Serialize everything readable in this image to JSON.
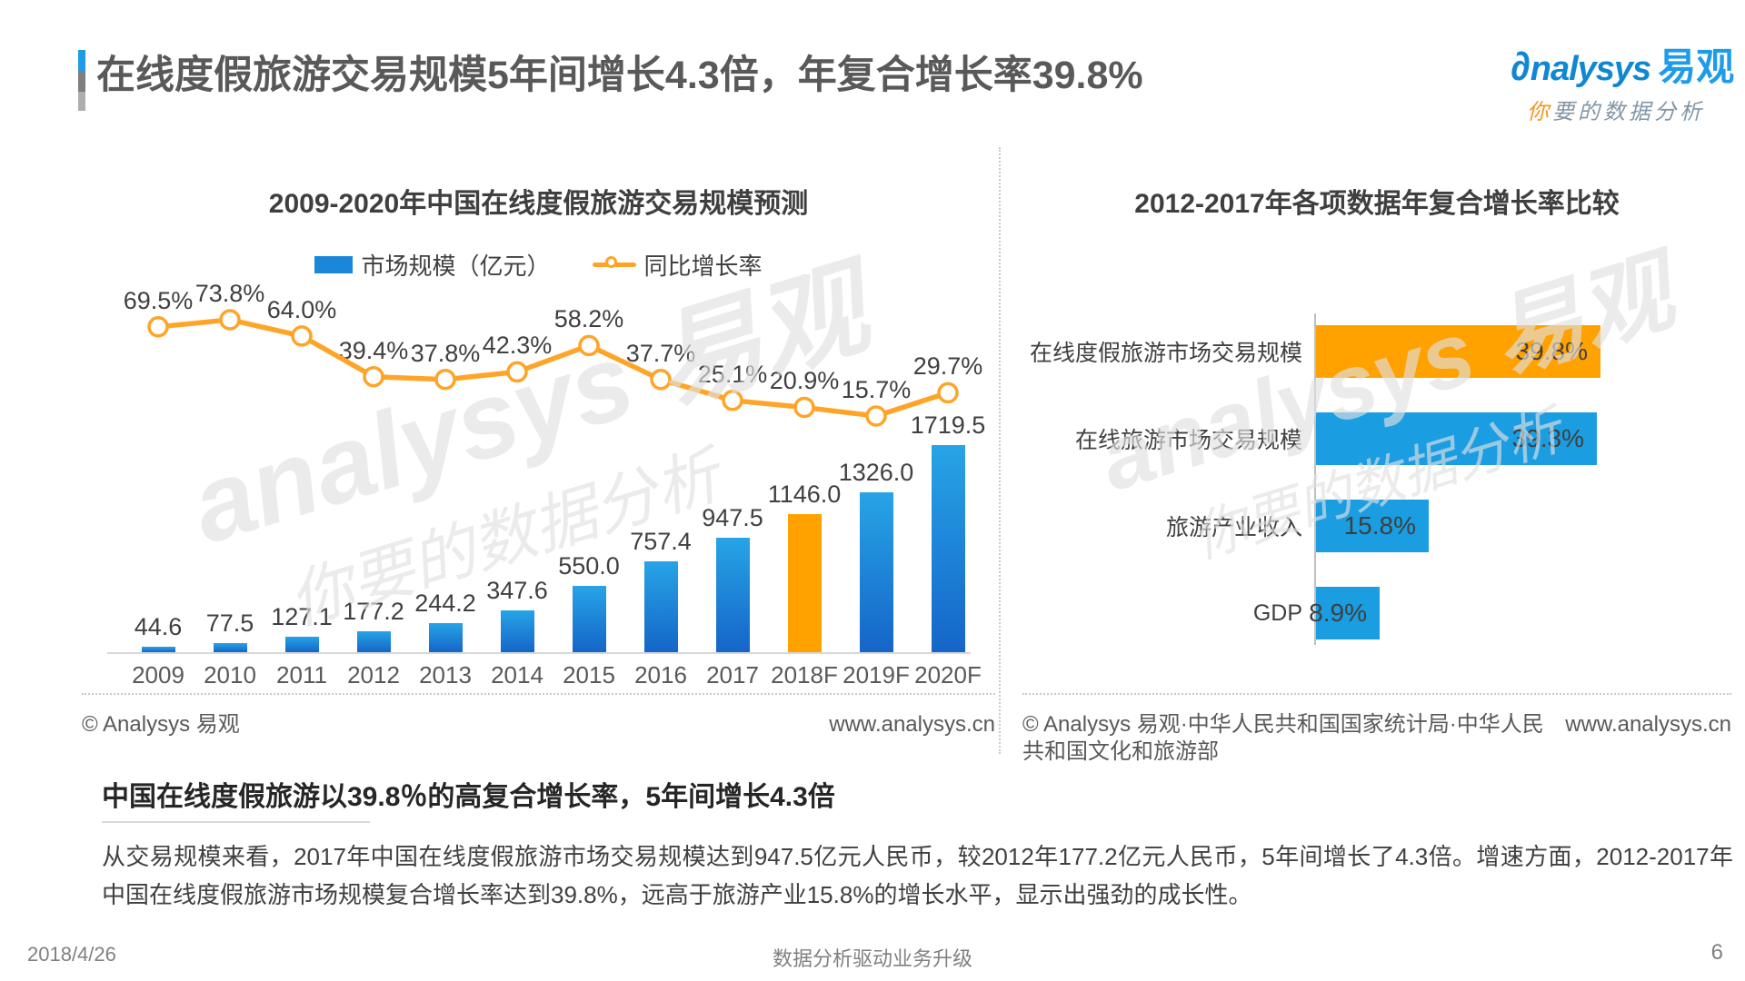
{
  "header": {
    "title": "在线度假旅游交易规模5年间增长4.3倍，年复合增长率39.8%",
    "logo": {
      "glyph": "∂",
      "brand_en": "nalysys",
      "brand_cn": "易观",
      "tagline_lead": "你",
      "tagline_rest": "要的数据分析"
    }
  },
  "watermark": {
    "line1": "analysys 易观",
    "line2": "你要的数据分析"
  },
  "chart_data": [
    {
      "type": "bar",
      "combo": "bar+line",
      "title": "2009-2020年中国在线度假旅游交易规模预测",
      "categories": [
        "2009",
        "2010",
        "2011",
        "2012",
        "2013",
        "2014",
        "2015",
        "2016",
        "2017",
        "2018F",
        "2019F",
        "2020F"
      ],
      "series": [
        {
          "name": "市场规模（亿元）",
          "kind": "bar",
          "values": [
            44.6,
            77.5,
            127.1,
            177.2,
            244.2,
            347.6,
            550.0,
            757.4,
            947.5,
            1146.0,
            1326.0,
            1719.5
          ],
          "color": "#1C86D8",
          "highlight_index": 9,
          "highlight_color": "#FFA200"
        },
        {
          "name": "同比增长率",
          "kind": "line",
          "suffix": "%",
          "values": [
            69.5,
            73.8,
            64.0,
            39.4,
            37.8,
            42.3,
            58.2,
            37.7,
            25.1,
            20.9,
            15.7,
            29.7
          ],
          "color": "#FFA426"
        }
      ],
      "grid": false,
      "legend_position": "top",
      "source_left": "© Analysys 易观",
      "source_right": "www.analysys.cn"
    },
    {
      "type": "bar",
      "orientation": "horizontal",
      "title": "2012-2017年各项数据年复合增长率比较",
      "categories": [
        "在线度假旅游市场交易规模",
        "在线旅游市场交易规模",
        "旅游产业收入",
        "GDP"
      ],
      "values": [
        39.8,
        39.3,
        15.8,
        8.9
      ],
      "suffix": "%",
      "colors": [
        "#FFA200",
        "#1B9DE2",
        "#1B9DE2",
        "#1B9DE2"
      ],
      "grid": false,
      "xlim": [
        0,
        45
      ],
      "source_left": "© Analysys 易观·中华人民共和国国家统计局·中华人民共和国文化和旅游部",
      "source_right": "www.analysys.cn"
    }
  ],
  "summary": {
    "heading": "中国在线度假旅游以39.8％的高复合增长率，5年间增长4.3倍",
    "body": "从交易规模来看，2017年中国在线度假旅游市场交易规模达到947.5亿元人民币，较2012年177.2亿元人民币，5年间增长了4.3倍。增速方面，2012-2017年中国在线度假旅游市场规模复合增长率达到39.8%，远高于旅游产业15.8%的增长水平，显示出强劲的成长性。"
  },
  "page": {
    "date": "2018/4/26",
    "footer_center": "数据分析驱动业务升级",
    "page_number": "6"
  }
}
